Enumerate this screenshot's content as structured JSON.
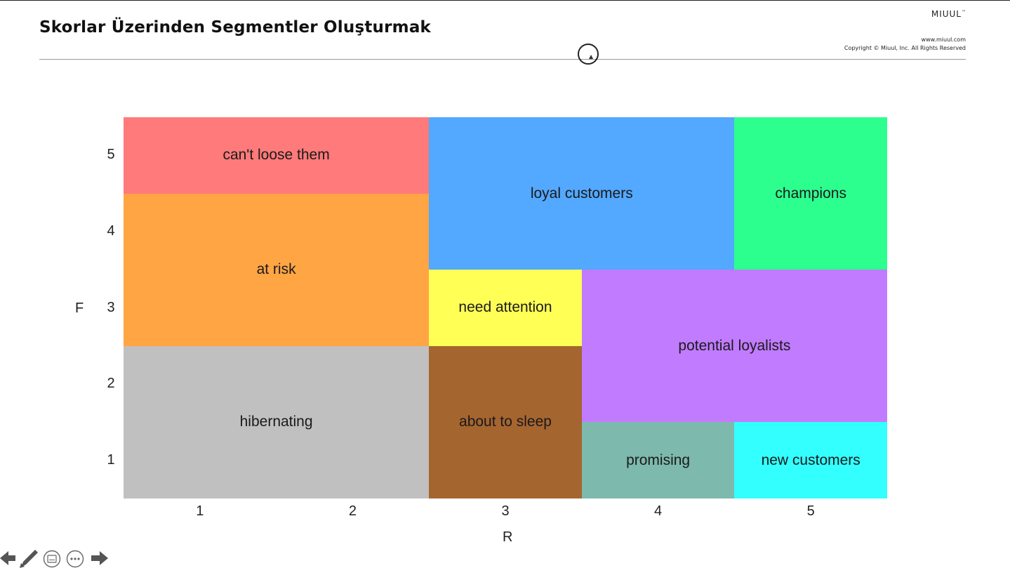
{
  "slide": {
    "title": "Skorlar Üzerinden Segmentler Oluşturmak",
    "brand": "MIUUL",
    "brand_tm": "™",
    "website": "www.miuul.com",
    "copyright": "Copyright © Miuul, Inc. All Rights Reserved"
  },
  "diagram": {
    "x_axis_label": "R",
    "y_axis_label": "F",
    "x_ticks": [
      "1",
      "2",
      "3",
      "4",
      "5"
    ],
    "y_ticks": [
      "5",
      "4",
      "3",
      "2",
      "1"
    ],
    "segments": [
      {
        "id": "cant-loose-them",
        "label": "can't loose them",
        "color": "#ff7a7a",
        "r": [
          1,
          2
        ],
        "f": [
          5,
          5
        ]
      },
      {
        "id": "loyal-customers",
        "label": "loyal customers",
        "color": "#53a8ff",
        "r": [
          3,
          4
        ],
        "f": [
          4,
          5
        ]
      },
      {
        "id": "champions",
        "label": "champions",
        "color": "#2dff8f",
        "r": [
          5,
          5
        ],
        "f": [
          4,
          5
        ]
      },
      {
        "id": "at-risk",
        "label": "at risk",
        "color": "#ffa544",
        "r": [
          1,
          2
        ],
        "f": [
          3,
          4
        ]
      },
      {
        "id": "need-attention",
        "label": "need attention",
        "color": "#ffff55",
        "r": [
          3,
          3
        ],
        "f": [
          3,
          3
        ]
      },
      {
        "id": "potential-loyalists",
        "label": "potential loyalists",
        "color": "#c17bff",
        "r": [
          4,
          5
        ],
        "f": [
          2,
          3
        ]
      },
      {
        "id": "hibernating",
        "label": "hibernating",
        "color": "#c0c0c0",
        "r": [
          1,
          2
        ],
        "f": [
          1,
          2
        ]
      },
      {
        "id": "about-to-sleep",
        "label": "about to sleep",
        "color": "#a5652f",
        "r": [
          3,
          3
        ],
        "f": [
          1,
          2
        ]
      },
      {
        "id": "promising",
        "label": "promising",
        "color": "#7db9ad",
        "r": [
          4,
          4
        ],
        "f": [
          1,
          1
        ]
      },
      {
        "id": "new-customers",
        "label": "new customers",
        "color": "#33ffff",
        "r": [
          5,
          5
        ],
        "f": [
          1,
          1
        ]
      }
    ]
  },
  "toolbar": {
    "icons": [
      "back-arrow-icon",
      "pen-icon",
      "subtitles-icon",
      "more-icon",
      "forward-arrow-icon"
    ]
  }
}
